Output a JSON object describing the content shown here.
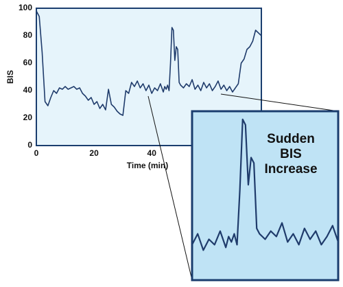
{
  "chart_data": {
    "type": "line",
    "xlabel": "Time (min)",
    "ylabel": "BIS",
    "x": [
      0,
      1,
      2,
      3,
      4,
      5,
      6,
      7,
      8,
      9,
      10,
      11,
      12,
      13,
      14,
      15,
      16,
      17,
      18,
      19,
      20,
      21,
      22,
      23,
      24,
      25,
      26,
      27,
      28,
      29,
      30,
      31,
      32,
      33,
      34,
      35,
      36,
      37,
      38,
      39,
      40,
      41,
      42,
      43,
      44,
      44.5,
      45,
      45.5,
      46,
      46.5,
      47,
      47.5,
      48,
      48.5,
      49,
      49.5,
      50,
      51,
      52,
      53,
      54,
      55,
      56,
      57,
      58,
      59,
      60,
      61,
      62,
      63,
      64,
      65,
      66,
      67,
      68,
      69,
      70,
      71,
      72,
      73,
      74,
      75,
      76,
      77,
      78
    ],
    "series": [
      {
        "color": "#1f3b6b",
        "values": [
          98,
          94,
          68,
          32,
          29,
          35,
          40,
          38,
          42,
          41,
          43,
          41,
          42,
          43,
          41,
          42,
          38,
          36,
          33,
          35,
          30,
          32,
          27,
          30,
          26,
          41,
          30,
          28,
          25,
          23,
          22,
          40,
          38,
          46,
          43,
          47,
          42,
          45,
          40,
          44,
          38,
          42,
          40,
          45,
          39,
          43,
          41,
          44,
          40,
          60,
          86,
          84,
          62,
          72,
          70,
          46,
          44,
          42,
          45,
          43,
          48,
          41,
          44,
          40,
          46,
          42,
          45,
          40,
          43,
          47,
          41,
          44,
          40,
          43,
          39,
          42,
          45,
          60,
          63,
          70,
          72,
          76,
          84,
          82,
          80
        ]
      }
    ],
    "xlim": [
      0,
      78
    ],
    "ylim": [
      0,
      100
    ],
    "xticks": [
      0,
      20,
      40
    ],
    "yticks": [
      0,
      20,
      40,
      60,
      80,
      100
    ],
    "inset": {
      "xlim": [
        38,
        64
      ],
      "ylim": [
        27,
        89
      ],
      "annotation": [
        "Sudden",
        "BIS",
        "Increase"
      ]
    }
  }
}
